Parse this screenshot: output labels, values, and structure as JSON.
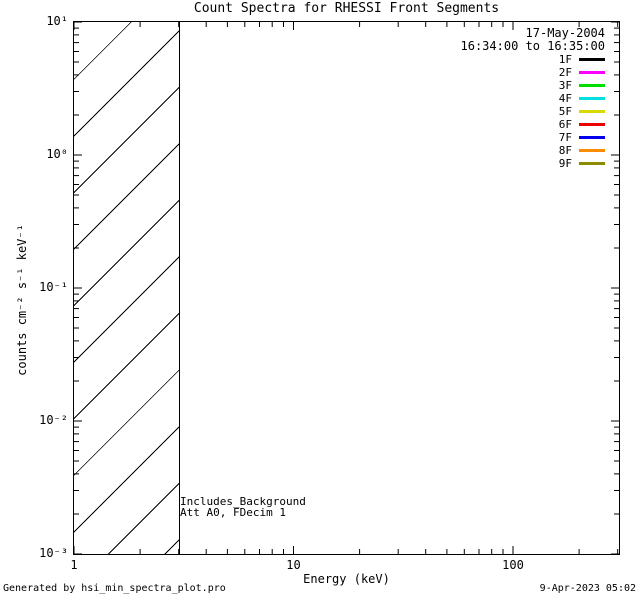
{
  "chart_data": {
    "type": "line",
    "title": "Count Spectra for RHESSI Front Segments",
    "xlabel": "Energy (keV)",
    "ylabel": "counts cm⁻² s⁻¹ keV⁻¹",
    "x_scale": "log",
    "y_scale": "log",
    "xlim": [
      1,
      304
    ],
    "ylim": [
      0.001,
      10
    ],
    "x_tick_values": [
      1,
      10,
      100
    ],
    "x_tick_labels": [
      "1",
      "10",
      "100"
    ],
    "y_tick_values": [
      10,
      1,
      0.1,
      0.01,
      0.001
    ],
    "y_tick_labels": [
      "10¹",
      "10⁰",
      "10⁻¹",
      "10⁻²",
      "10⁻³"
    ],
    "grid": false,
    "legend_position": "top-right",
    "legend": {
      "date": "17-May-2004",
      "time_range": "16:34:00 to 16:35:00",
      "entries": [
        {
          "label": "1F",
          "color": "#000000"
        },
        {
          "label": "2F",
          "color": "#ff00ff"
        },
        {
          "label": "3F",
          "color": "#00dd00"
        },
        {
          "label": "4F",
          "color": "#00e0e0"
        },
        {
          "label": "5F",
          "color": "#d9d900"
        },
        {
          "label": "6F",
          "color": "#ee0000"
        },
        {
          "label": "7F",
          "color": "#0000ee"
        },
        {
          "label": "8F",
          "color": "#ff8c00"
        },
        {
          "label": "9F",
          "color": "#8b8b00"
        }
      ]
    },
    "series": [],
    "hatched_region": {
      "x_from": 1,
      "x_to": 3,
      "style": "diagonal-hatch",
      "note": "no spectra curves plotted; only hatched low-energy band shown"
    }
  },
  "annotations": {
    "line1": "Includes_Background",
    "line2": "Att A0, FDecim 1"
  },
  "footer": {
    "generated_by": "Generated by hsi_min_spectra_plot.pro",
    "datetime": "9-Apr-2023 05:02"
  }
}
